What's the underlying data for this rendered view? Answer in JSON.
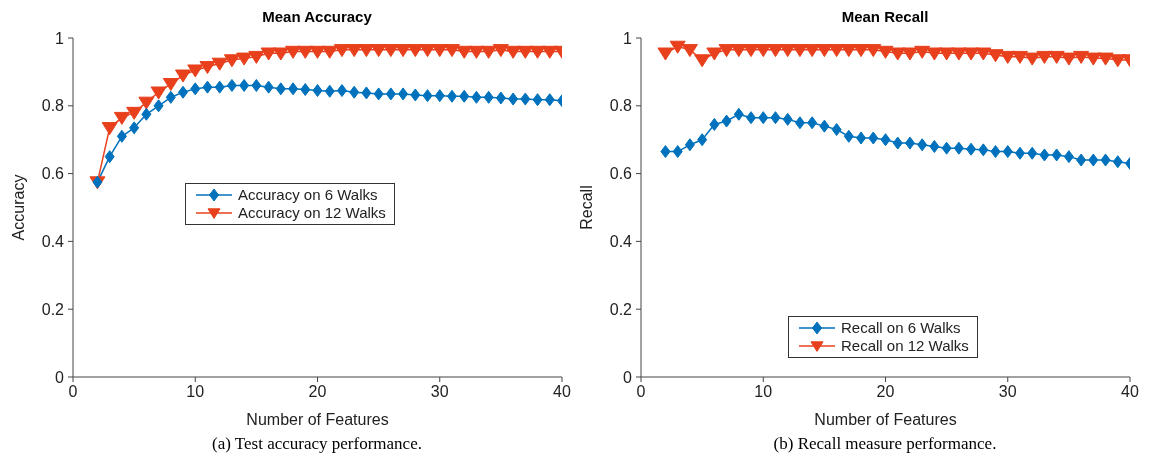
{
  "chart_data": [
    {
      "type": "line",
      "title": "Mean Accuracy",
      "xlabel": "Number of Features",
      "ylabel": "Accuracy",
      "annotations": [
        "(a) Test accuracy performance."
      ],
      "x": [
        2,
        3,
        4,
        5,
        6,
        7,
        8,
        9,
        10,
        11,
        12,
        13,
        14,
        15,
        16,
        17,
        18,
        19,
        20,
        21,
        22,
        23,
        24,
        25,
        26,
        27,
        28,
        29,
        30,
        31,
        32,
        33,
        34,
        35,
        36,
        37,
        38,
        39,
        40
      ],
      "xlim": [
        0,
        40
      ],
      "xticks": [
        0,
        10,
        20,
        30,
        40
      ],
      "ylim": [
        0,
        1
      ],
      "yticks": [
        0,
        0.2,
        0.4,
        0.6,
        0.8,
        1
      ],
      "grid": false,
      "legend": "center",
      "line_style": "solid",
      "series": [
        {
          "name": "Accuracy on 6 Walks",
          "color": "#0072bd",
          "marker": "diamond",
          "values": [
            0.575,
            0.65,
            0.71,
            0.735,
            0.775,
            0.8,
            0.825,
            0.84,
            0.85,
            0.855,
            0.855,
            0.86,
            0.86,
            0.86,
            0.855,
            0.85,
            0.85,
            0.848,
            0.845,
            0.843,
            0.845,
            0.84,
            0.838,
            0.835,
            0.835,
            0.835,
            0.832,
            0.83,
            0.83,
            0.828,
            0.828,
            0.825,
            0.825,
            0.823,
            0.82,
            0.82,
            0.818,
            0.818,
            0.815
          ]
        },
        {
          "name": "Accuracy on 12 Walks",
          "color": "#e8401c",
          "marker": "triangle",
          "values": [
            0.575,
            0.735,
            0.765,
            0.78,
            0.81,
            0.84,
            0.865,
            0.89,
            0.905,
            0.915,
            0.925,
            0.935,
            0.94,
            0.945,
            0.955,
            0.955,
            0.96,
            0.96,
            0.96,
            0.96,
            0.965,
            0.965,
            0.965,
            0.965,
            0.965,
            0.965,
            0.965,
            0.965,
            0.965,
            0.965,
            0.96,
            0.96,
            0.96,
            0.965,
            0.96,
            0.96,
            0.96,
            0.96,
            0.96
          ]
        }
      ]
    },
    {
      "type": "line",
      "title": "Mean Recall",
      "xlabel": "Number of Features",
      "ylabel": "Recall",
      "annotations": [
        "(b) Recall measure performance."
      ],
      "x": [
        2,
        3,
        4,
        5,
        6,
        7,
        8,
        9,
        10,
        11,
        12,
        13,
        14,
        15,
        16,
        17,
        18,
        19,
        20,
        21,
        22,
        23,
        24,
        25,
        26,
        27,
        28,
        29,
        30,
        31,
        32,
        33,
        34,
        35,
        36,
        37,
        38,
        39,
        40
      ],
      "xlim": [
        0,
        40
      ],
      "xticks": [
        0,
        10,
        20,
        30,
        40
      ],
      "ylim": [
        0,
        1
      ],
      "yticks": [
        0,
        0.2,
        0.4,
        0.6,
        0.8,
        1
      ],
      "grid": false,
      "legend": "bottom",
      "line_style": "solid",
      "series": [
        {
          "name": "Recall on 6 Walks",
          "color": "#0072bd",
          "marker": "diamond",
          "values": [
            0.665,
            0.665,
            0.685,
            0.7,
            0.745,
            0.755,
            0.775,
            0.765,
            0.765,
            0.765,
            0.76,
            0.75,
            0.75,
            0.74,
            0.73,
            0.71,
            0.705,
            0.705,
            0.7,
            0.69,
            0.69,
            0.685,
            0.68,
            0.675,
            0.675,
            0.672,
            0.67,
            0.665,
            0.665,
            0.66,
            0.66,
            0.655,
            0.655,
            0.65,
            0.64,
            0.64,
            0.64,
            0.635,
            0.63
          ]
        },
        {
          "name": "Recall on 12 Walks",
          "color": "#e8401c",
          "marker": "triangle",
          "values": [
            0.955,
            0.975,
            0.965,
            0.935,
            0.955,
            0.965,
            0.965,
            0.965,
            0.965,
            0.965,
            0.965,
            0.965,
            0.965,
            0.965,
            0.965,
            0.965,
            0.965,
            0.965,
            0.96,
            0.955,
            0.955,
            0.96,
            0.955,
            0.955,
            0.955,
            0.955,
            0.955,
            0.95,
            0.945,
            0.945,
            0.94,
            0.945,
            0.945,
            0.94,
            0.945,
            0.94,
            0.94,
            0.935,
            0.935
          ]
        }
      ]
    }
  ]
}
